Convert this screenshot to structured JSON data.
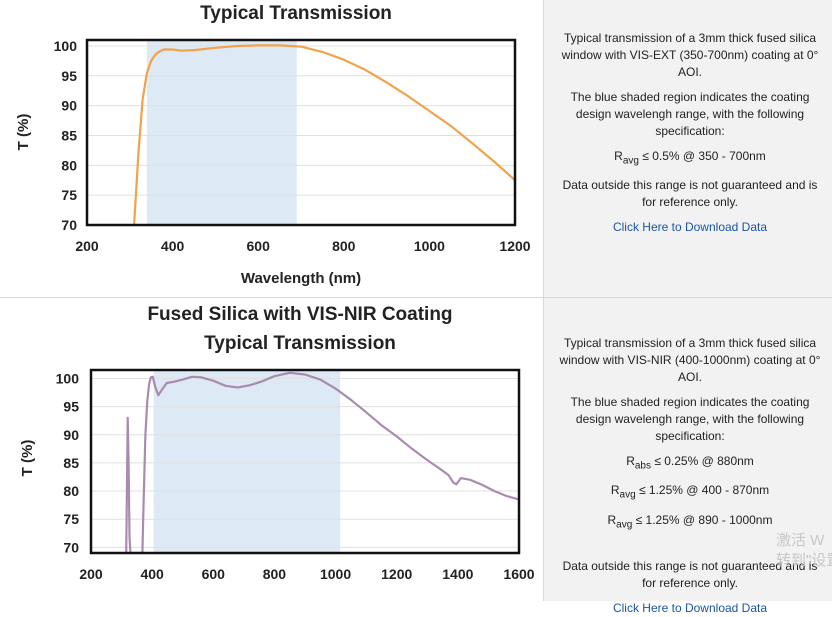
{
  "charts": [
    {
      "title_lines": [
        "Typical Transmission"
      ],
      "ylabel": "T (%)",
      "xlabel": "Wavelength (nm)",
      "x_ticks": [
        "200",
        "400",
        "600",
        "800",
        "1000",
        "1200"
      ],
      "y_ticks": [
        "100",
        "95",
        "90",
        "85",
        "80",
        "75",
        "70"
      ],
      "description": {
        "intro": "Typical transmission of a 3mm thick fused silica window with VIS-EXT (350-700nm) coating at 0° AOI.",
        "shaded_note": "The blue shaded region indicates the coating design wavelengh range, with the following specification:",
        "specs": [
          {
            "prefix": "R",
            "sub": "avg",
            "rest": " ≤ 0.5% @ 350 - 700nm"
          }
        ],
        "disclaimer": "Data outside this range is not guaranteed and is for reference only.",
        "download_link": "Click Here to Download Data"
      }
    },
    {
      "title_lines": [
        "Fused Silica with VIS-NIR Coating",
        "Typical Transmission"
      ],
      "ylabel": "T (%)",
      "xlabel": "Wavelength (nm)",
      "x_ticks": [
        "200",
        "400",
        "600",
        "800",
        "1000",
        "1200",
        "1400",
        "1600"
      ],
      "y_ticks": [
        "100",
        "95",
        "90",
        "85",
        "80",
        "75",
        "70"
      ],
      "description": {
        "intro": "Typical transmission of a 3mm thick fused silica window with VIS-NIR (400-1000nm) coating at 0° AOI.",
        "shaded_note": "The blue shaded region indicates the coating design wavelengh range, with the following specification:",
        "specs": [
          {
            "prefix": "R",
            "sub": "abs",
            "rest": " ≤ 0.25% @ 880nm"
          },
          {
            "prefix": "R",
            "sub": "avg",
            "rest": " ≤ 1.25% @ 400 - 870nm"
          },
          {
            "prefix": "R",
            "sub": "avg",
            "rest": " ≤ 1.25% @ 890 - 1000nm"
          }
        ],
        "disclaimer": "Data outside this range is not guaranteed and is for reference only.",
        "download_link": "Click Here to Download Data"
      }
    }
  ],
  "chart_data": [
    {
      "type": "line",
      "title": "Typical Transmission",
      "xlabel": "Wavelength (nm)",
      "ylabel": "T (%)",
      "xlim": [
        200,
        1200
      ],
      "ylim": [
        70,
        101
      ],
      "shaded_region": [
        340,
        690
      ],
      "shaded_color": "#dde9f5",
      "series": [
        {
          "name": "VIS-EXT",
          "color": "#f2a24a",
          "x": [
            310,
            320,
            330,
            340,
            350,
            360,
            370,
            380,
            400,
            420,
            450,
            500,
            550,
            600,
            650,
            700,
            750,
            800,
            850,
            900,
            950,
            1000,
            1050,
            1100,
            1150,
            1200
          ],
          "y": [
            70,
            82,
            91,
            95.5,
            97.5,
            98.6,
            99.1,
            99.4,
            99.4,
            99.2,
            99.3,
            99.7,
            100,
            100.1,
            100.1,
            99.9,
            99,
            97.7,
            96,
            93.9,
            91.6,
            89.1,
            86.6,
            83.7,
            80.7,
            77.5
          ]
        }
      ]
    },
    {
      "type": "line",
      "title": "Fused Silica with VIS-NIR Coating Typical Transmission",
      "xlabel": "Wavelength (nm)",
      "ylabel": "T (%)",
      "xlim": [
        200,
        1600
      ],
      "ylim": [
        69,
        101.5
      ],
      "shaded_region": [
        405,
        1015
      ],
      "shaded_color": "#dde9f5",
      "series": [
        {
          "name": "VIS-NIR",
          "color": "#a98bb0",
          "x": [
            312,
            315,
            317,
            320,
            323,
            326,
            329,
            332,
            336,
            360,
            368,
            372,
            378,
            384,
            390,
            396,
            402,
            410,
            420,
            432,
            448,
            470,
            500,
            530,
            560,
            600,
            640,
            680,
            720,
            760,
            800,
            850,
            900,
            950,
            1000,
            1050,
            1100,
            1150,
            1200,
            1250,
            1300,
            1340,
            1370,
            1385,
            1395,
            1410,
            1440,
            1480,
            1520,
            1560,
            1600
          ],
          "y": [
            69,
            69,
            78,
            93,
            85,
            72,
            69,
            69,
            69,
            69,
            69,
            78,
            90,
            96,
            99,
            100.2,
            100.3,
            98.5,
            97,
            98,
            99.2,
            99.4,
            99.8,
            100.3,
            100.2,
            99.6,
            98.7,
            98.4,
            98.8,
            99.5,
            100.4,
            101,
            100.7,
            99.8,
            98.2,
            96.2,
            94,
            91.7,
            89.7,
            87.5,
            85.5,
            84,
            82.8,
            81.5,
            81.2,
            82.3,
            82,
            81.1,
            80,
            79.1,
            78.5
          ]
        }
      ]
    }
  ],
  "watermark": {
    "line1": "激活 W",
    "line2": "转到\"设置"
  }
}
